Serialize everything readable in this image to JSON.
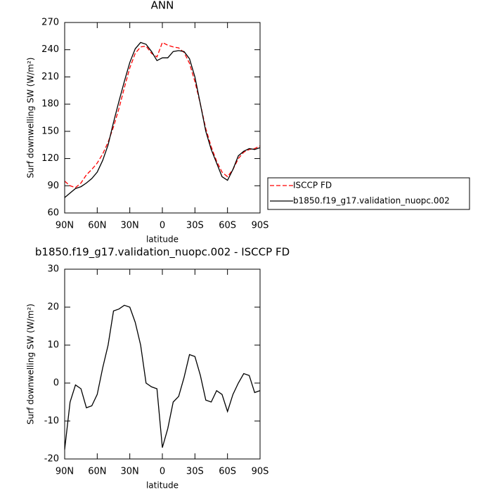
{
  "chart_data": [
    {
      "type": "line",
      "title": "ANN",
      "xlabel": "latitude",
      "ylabel": "Surf downwelling SW (W/m²)",
      "x": [
        90,
        85,
        80,
        75,
        70,
        65,
        60,
        55,
        50,
        45,
        40,
        35,
        30,
        25,
        20,
        15,
        10,
        5,
        0,
        -5,
        -10,
        -15,
        -20,
        -25,
        -30,
        -35,
        -40,
        -45,
        -50,
        -55,
        -60,
        -65,
        -70,
        -75,
        -80,
        -85,
        -90
      ],
      "series": [
        {
          "name": "ISCCP FD",
          "color": "#ff0000",
          "style": "dashed",
          "values": [
            95,
            90,
            88,
            93,
            102,
            108,
            115,
            125,
            138,
            155,
            175,
            198,
            220,
            236,
            243,
            244,
            236,
            232,
            248,
            245,
            243,
            242,
            237,
            225,
            205,
            180,
            153,
            133,
            117,
            105,
            100,
            108,
            120,
            127,
            130,
            131,
            134
          ]
        },
        {
          "name": "b1850.f19_g17.validation_nuopc.002",
          "color": "#000000",
          "style": "solid",
          "values": [
            77,
            82,
            87,
            89,
            93,
            98,
            105,
            118,
            135,
            160,
            183,
            205,
            226,
            241,
            248,
            246,
            238,
            228,
            231,
            231,
            238,
            239,
            238,
            230,
            210,
            180,
            150,
            130,
            115,
            100,
            96,
            108,
            123,
            128,
            131,
            130,
            132
          ]
        }
      ],
      "xlim": [
        90,
        -90
      ],
      "xticks": [
        {
          "value": 90,
          "label": "90N"
        },
        {
          "value": 60,
          "label": "60N"
        },
        {
          "value": 30,
          "label": "30N"
        },
        0,
        {
          "value": -30,
          "label": "30S"
        },
        {
          "value": -60,
          "label": "60S"
        },
        {
          "value": -90,
          "label": "90S"
        }
      ],
      "ylim": [
        60,
        270
      ],
      "yticks": [
        60,
        90,
        120,
        150,
        180,
        210,
        240,
        270
      ],
      "legend": "right"
    },
    {
      "type": "line",
      "title": "b1850.f19_g17.validation_nuopc.002 - ISCCP FD",
      "xlabel": "latitude",
      "ylabel": "Surf downwelling SW (W/m²)",
      "x": [
        90,
        85,
        80,
        75,
        70,
        65,
        60,
        55,
        50,
        45,
        40,
        35,
        30,
        25,
        20,
        15,
        10,
        5,
        0,
        -5,
        -10,
        -15,
        -20,
        -25,
        -30,
        -35,
        -40,
        -45,
        -50,
        -55,
        -60,
        -65,
        -70,
        -75,
        -80,
        -85,
        -90
      ],
      "series": [
        {
          "color": "#000000",
          "style": "solid",
          "values": [
            -17.5,
            -5,
            -0.5,
            -1.5,
            -6.5,
            -6,
            -3,
            4,
            10,
            19,
            19.5,
            20.5,
            20,
            16,
            10,
            0,
            -1,
            -1.5,
            -17,
            -12,
            -5,
            -3.5,
            1.5,
            7.5,
            7,
            2,
            -4.5,
            -5,
            -2,
            -3,
            -7.5,
            -3,
            0,
            2.5,
            2,
            -2.5,
            -2
          ]
        }
      ],
      "xlim": [
        90,
        -90
      ],
      "xticks": [
        {
          "value": 90,
          "label": "90N"
        },
        {
          "value": 60,
          "label": "60N"
        },
        {
          "value": 30,
          "label": "30N"
        },
        0,
        {
          "value": -30,
          "label": "30S"
        },
        {
          "value": -60,
          "label": "60S"
        },
        {
          "value": -90,
          "label": "90S"
        }
      ],
      "ylim": [
        -20,
        30
      ],
      "yticks": [
        -20,
        -10,
        0,
        10,
        20,
        30
      ]
    }
  ]
}
